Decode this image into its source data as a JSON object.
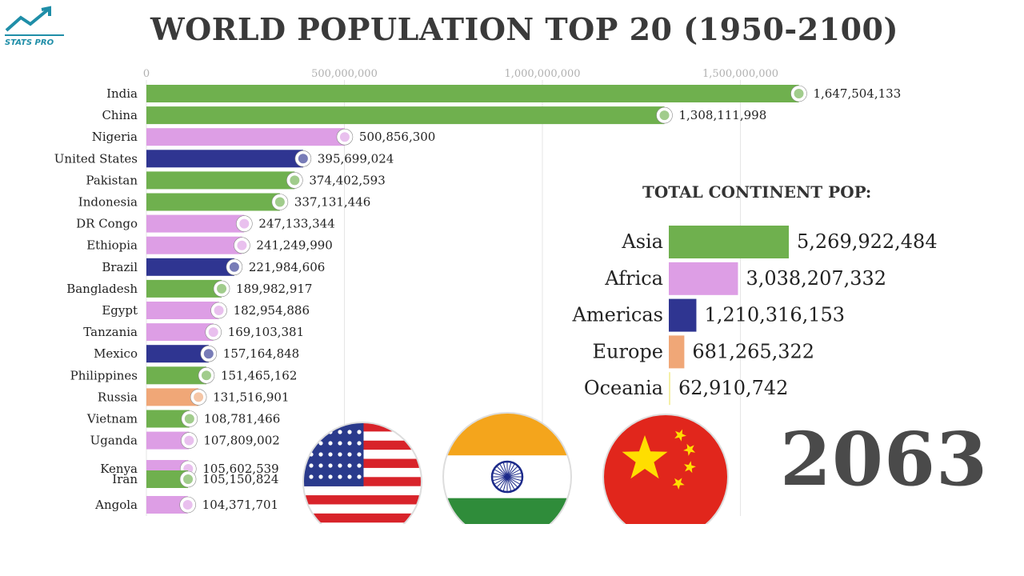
{
  "header": {
    "title": "WORLD POPULATION TOP 20 (1950-2100)",
    "logo_text": "STATS PRO"
  },
  "year_label": "2063",
  "continent_title": "TOTAL CONTINENT POP:",
  "colors": {
    "Asia": "#6fb04e",
    "Africa": "#dd9ee5",
    "Americas": "#2f3591",
    "Europe": "#f0a777",
    "Oceania": "#f5f0a8"
  },
  "chart_data": [
    {
      "type": "bar",
      "orientation": "horizontal",
      "title": "WORLD POPULATION TOP 20 (1950-2100)",
      "xlim": [
        0,
        1700000000
      ],
      "x_ticks": [
        0,
        500000000,
        1000000000,
        1500000000
      ],
      "x_tick_labels": [
        "0",
        "500,000,000",
        "1,000,000,000",
        "1,500,000,000"
      ],
      "grid": true,
      "categories": [
        "India",
        "China",
        "Nigeria",
        "United States",
        "Pakistan",
        "Indonesia",
        "DR Congo",
        "Ethiopia",
        "Brazil",
        "Bangladesh",
        "Egypt",
        "Tanzania",
        "Mexico",
        "Philippines",
        "Russia",
        "Vietnam",
        "Uganda",
        "Kenya",
        "Iran",
        "Angola"
      ],
      "values": [
        1647504133,
        1308111998,
        500856300,
        395699024,
        374402593,
        337131446,
        247133344,
        241249990,
        221984606,
        189982917,
        182954886,
        169103381,
        157164848,
        151465162,
        131516901,
        108781466,
        107809002,
        105602539,
        105150824,
        104371701
      ],
      "value_labels": [
        "1,647,504,133",
        "1,308,111,998",
        "500,856,300",
        "395,699,024",
        "374,402,593",
        "337,131,446",
        "247,133,344",
        "241,249,990",
        "221,984,606",
        "189,982,917",
        "182,954,886",
        "169,103,381",
        "157,164,848",
        "151,465,162",
        "131,516,901",
        "108,781,466",
        "107,809,002",
        "105,602,539",
        "105,150,824",
        "104,371,701"
      ],
      "continent": [
        "Asia",
        "Asia",
        "Africa",
        "Americas",
        "Asia",
        "Asia",
        "Africa",
        "Africa",
        "Americas",
        "Asia",
        "Africa",
        "Africa",
        "Americas",
        "Asia",
        "Europe",
        "Asia",
        "Africa",
        "Africa",
        "Asia",
        "Africa"
      ]
    },
    {
      "type": "bar",
      "orientation": "horizontal",
      "title": "TOTAL CONTINENT POP:",
      "categories": [
        "Asia",
        "Africa",
        "Americas",
        "Europe",
        "Oceania"
      ],
      "values": [
        5269922484,
        3038207332,
        1210316153,
        681265322,
        62910742
      ],
      "value_labels": [
        "5,269,922,484",
        "3,038,207,332",
        "1,210,316,153",
        "681,265,322",
        "62,910,742"
      ]
    }
  ],
  "flags": [
    "us-flag-icon",
    "india-flag-icon",
    "china-flag-icon"
  ]
}
